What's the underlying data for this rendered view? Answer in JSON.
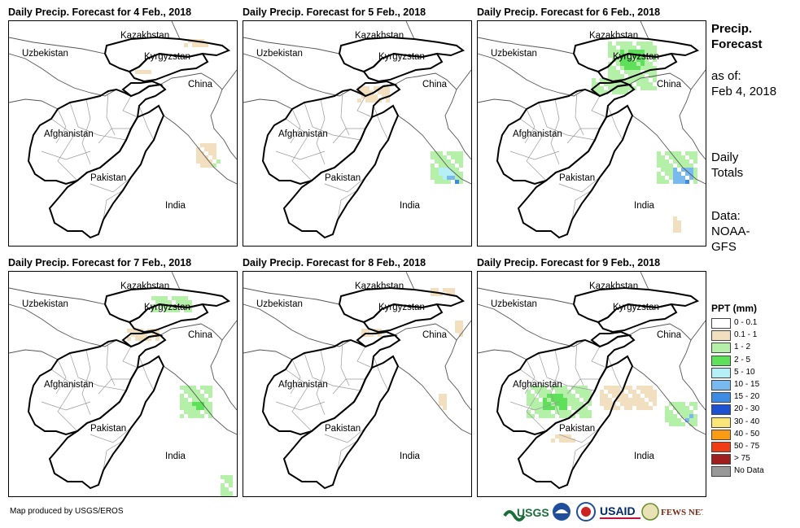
{
  "panels": [
    {
      "title": "Daily Precip. Forecast for 4 Feb., 2018"
    },
    {
      "title": "Daily Precip. Forecast for 5 Feb., 2018"
    },
    {
      "title": "Daily Precip. Forecast for 6 Feb., 2018"
    },
    {
      "title": "Daily Precip. Forecast for 7 Feb., 2018"
    },
    {
      "title": "Daily Precip. Forecast for 8 Feb., 2018"
    },
    {
      "title": "Daily Precip. Forecast for 9 Feb., 2018"
    }
  ],
  "map_labels": {
    "kazakhstan": "Kazakhstan",
    "uzbekistan": "Uzbekistan",
    "kyrgyzstan": "Kyrgyzstan",
    "china": "China",
    "afghanistan": "Afghanistan",
    "pakistan": "Pakistan",
    "india": "India"
  },
  "sidebar": {
    "title_line1": "Precip.",
    "title_line2": "Forecast",
    "asof_line1": "as of:",
    "asof_line2": "Feb 4, 2018",
    "daily_line1": "Daily",
    "daily_line2": "Totals",
    "data_line1": "Data:",
    "data_line2": "NOAA-",
    "data_line3": "GFS"
  },
  "legend": {
    "title": "PPT (mm)",
    "items": [
      {
        "label": "0 - 0.1",
        "color": "#ffffff"
      },
      {
        "label": "0.1 - 1",
        "color": "#f2dfc0"
      },
      {
        "label": "1 - 2",
        "color": "#b4f0a8"
      },
      {
        "label": "2 - 5",
        "color": "#5fe05a"
      },
      {
        "label": "5 - 10",
        "color": "#b4f0f5"
      },
      {
        "label": "10 - 15",
        "color": "#78b9f0"
      },
      {
        "label": "15 - 20",
        "color": "#3c8ce6"
      },
      {
        "label": "20 - 30",
        "color": "#1e50d2"
      },
      {
        "label": "30 - 40",
        "color": "#fae678"
      },
      {
        "label": "40 - 50",
        "color": "#fa9b14"
      },
      {
        "label": "50 - 75",
        "color": "#f03c14"
      },
      {
        "label": "> 75",
        "color": "#a01e1e"
      },
      {
        "label": "No Data",
        "color": "#999999"
      }
    ]
  },
  "footer": {
    "credit": "Map produced by USGS/EROS",
    "logo_usgs": "USGS",
    "logo_usaid": "USAID",
    "logo_fewsnet": "FEWS NET"
  }
}
